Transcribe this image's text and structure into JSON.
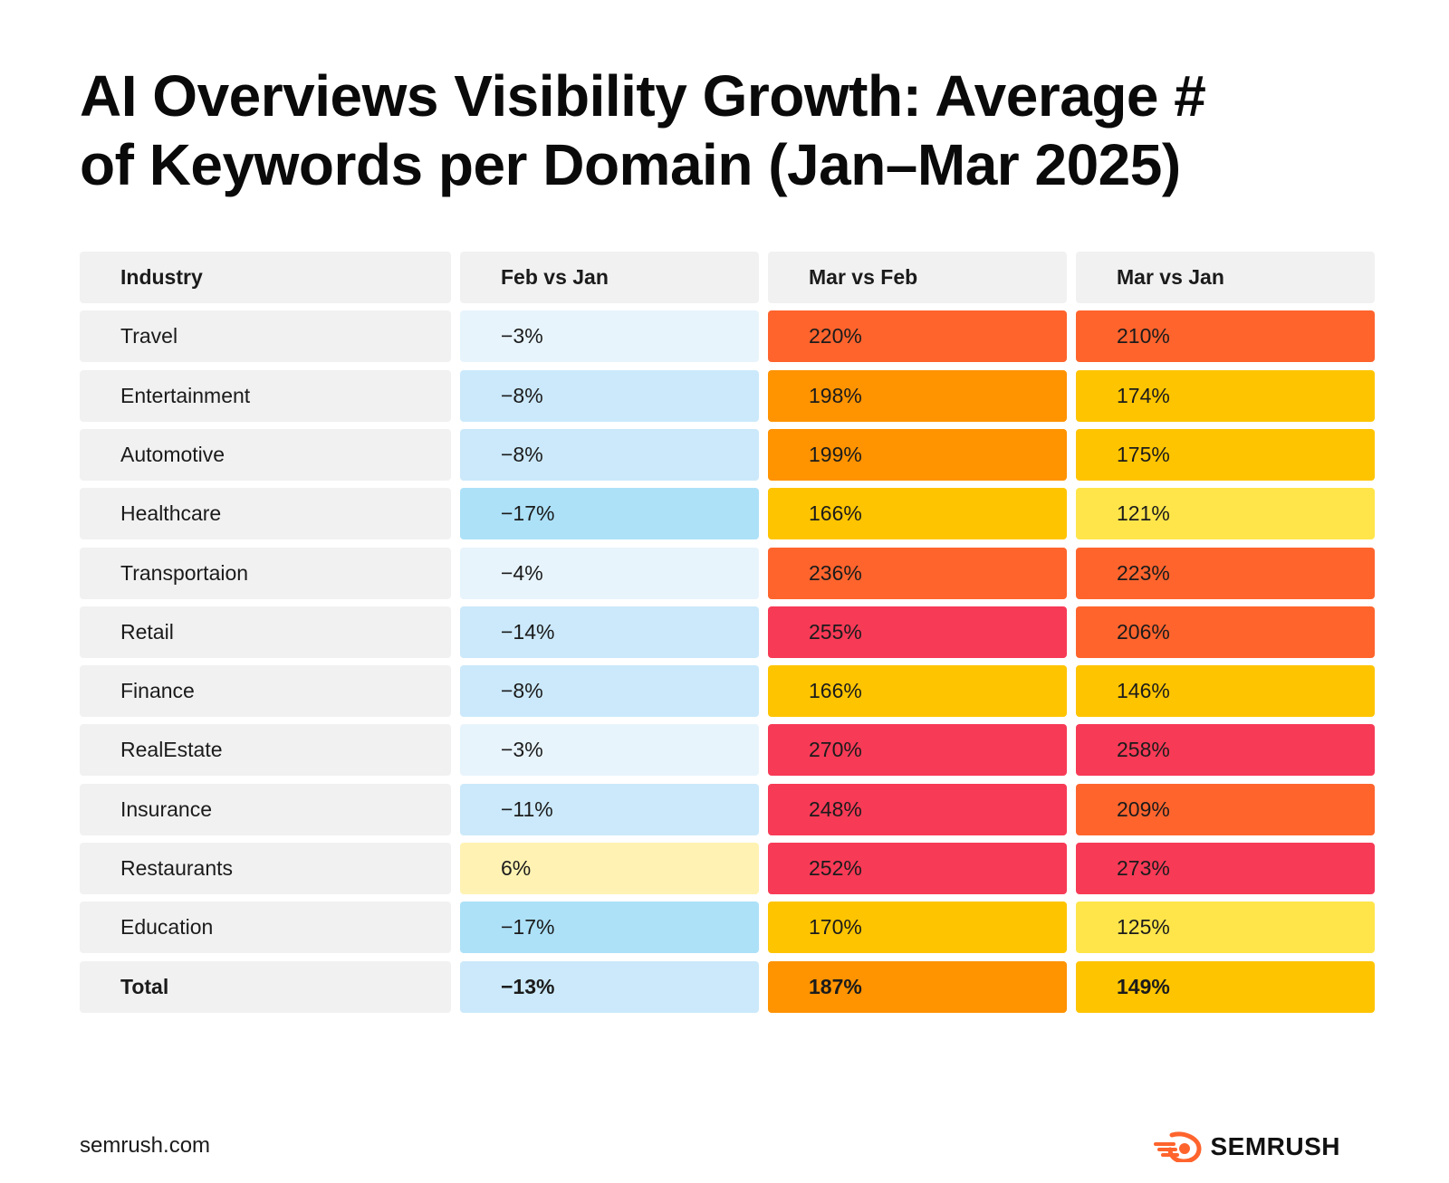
{
  "title_lines": [
    "AI Overviews Visibility Growth: Average #",
    "of Keywords per Domain (Jan–Mar 2025)"
  ],
  "footer": {
    "source": "semrush.com",
    "brand": "SEMRUSH",
    "logo_icon": "semrush-flame-icon",
    "logo_color": "#ff642d"
  },
  "chart_data": {
    "type": "table",
    "title": "AI Overviews Visibility Growth: Average # of Keywords per Domain (Jan–Mar 2025)",
    "columns": [
      "Industry",
      "Feb vs Jan",
      "Mar vs Feb",
      "Mar vs Jan"
    ],
    "rows": [
      {
        "industry": "Travel",
        "values": [
          "−3%",
          "220%",
          "210%"
        ],
        "colors": [
          "#e8f4fc",
          "#ff642d",
          "#ff642d"
        ]
      },
      {
        "industry": "Entertainment",
        "values": [
          "−8%",
          "198%",
          "174%"
        ],
        "colors": [
          "#cbe9fa",
          "#ff9300",
          "#ffc400"
        ]
      },
      {
        "industry": "Automotive",
        "values": [
          "−8%",
          "199%",
          "175%"
        ],
        "colors": [
          "#cbe9fa",
          "#ff9300",
          "#ffc400"
        ]
      },
      {
        "industry": "Healthcare",
        "values": [
          "−17%",
          "166%",
          "121%"
        ],
        "colors": [
          "#ade1f8",
          "#ffc400",
          "#ffe54a"
        ]
      },
      {
        "industry": "Transportaion",
        "values": [
          "−4%",
          "236%",
          "223%"
        ],
        "colors": [
          "#e8f4fc",
          "#ff642d",
          "#ff642d"
        ]
      },
      {
        "industry": "Retail",
        "values": [
          "−14%",
          "255%",
          "206%"
        ],
        "colors": [
          "#cbe9fa",
          "#f73a56",
          "#ff642d"
        ]
      },
      {
        "industry": "Finance",
        "values": [
          "−8%",
          "166%",
          "146%"
        ],
        "colors": [
          "#cbe9fa",
          "#ffc400",
          "#ffc400"
        ]
      },
      {
        "industry": "RealEstate",
        "values": [
          "−3%",
          "270%",
          "258%"
        ],
        "colors": [
          "#e8f4fc",
          "#f73a56",
          "#f73a56"
        ]
      },
      {
        "industry": "Insurance",
        "values": [
          "−11%",
          "248%",
          "209%"
        ],
        "colors": [
          "#cbe9fa",
          "#f73a56",
          "#ff642d"
        ]
      },
      {
        "industry": "Restaurants",
        "values": [
          "6%",
          "252%",
          "273%"
        ],
        "colors": [
          "#fff2b3",
          "#f73a56",
          "#f73a56"
        ]
      },
      {
        "industry": "Education",
        "values": [
          "−17%",
          "170%",
          "125%"
        ],
        "colors": [
          "#ade1f8",
          "#ffc400",
          "#ffe54a"
        ]
      }
    ],
    "total": {
      "industry": "Total",
      "values": [
        "−13%",
        "187%",
        "149%"
      ],
      "colors": [
        "#cbe9fa",
        "#ff9300",
        "#ffc400"
      ]
    },
    "header_color": "#f1f1f1"
  }
}
